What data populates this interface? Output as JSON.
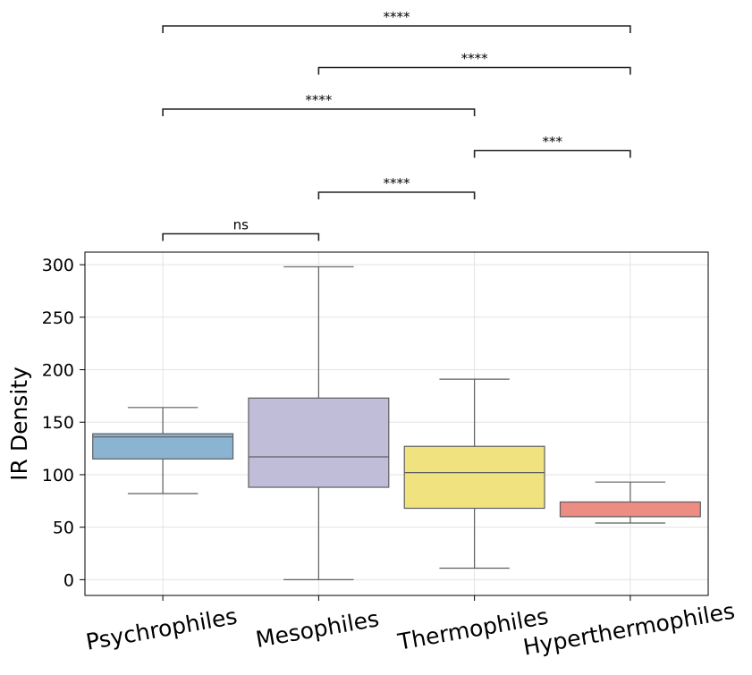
{
  "chart_data": {
    "type": "box",
    "title": "",
    "xlabel": "",
    "ylabel": "IR Density",
    "ylim": [
      -15,
      312
    ],
    "yticks": [
      0,
      50,
      100,
      150,
      200,
      250,
      300
    ],
    "grid": true,
    "categories": [
      "Psychrophiles",
      "Mesophiles",
      "Thermophiles",
      "Hyperthermophiles"
    ],
    "colors": [
      "#8ab4d2",
      "#c0bdd8",
      "#f0e27e",
      "#ec8c82"
    ],
    "boxes": [
      {
        "category": "Psychrophiles",
        "whisker_low": 82,
        "q1": 115,
        "median": 136,
        "q3": 139,
        "whisker_high": 164
      },
      {
        "category": "Mesophiles",
        "whisker_low": 0,
        "q1": 88,
        "median": 117,
        "q3": 173,
        "whisker_high": 298
      },
      {
        "category": "Thermophiles",
        "whisker_low": 11,
        "q1": 68,
        "median": 102,
        "q3": 127,
        "whisker_high": 191
      },
      {
        "category": "Hyperthermophiles",
        "whisker_low": 54,
        "q1": 60,
        "median": 60,
        "q3": 74,
        "whisker_high": 93
      }
    ],
    "comparisons": [
      {
        "from": "Psychrophiles",
        "to": "Hyperthermophiles",
        "label": "****"
      },
      {
        "from": "Mesophiles",
        "to": "Hyperthermophiles",
        "label": "****"
      },
      {
        "from": "Psychrophiles",
        "to": "Thermophiles",
        "label": "****"
      },
      {
        "from": "Thermophiles",
        "to": "Hyperthermophiles",
        "label": "***"
      },
      {
        "from": "Mesophiles",
        "to": "Thermophiles",
        "label": "****"
      },
      {
        "from": "Psychrophiles",
        "to": "Mesophiles",
        "label": "ns"
      }
    ]
  }
}
